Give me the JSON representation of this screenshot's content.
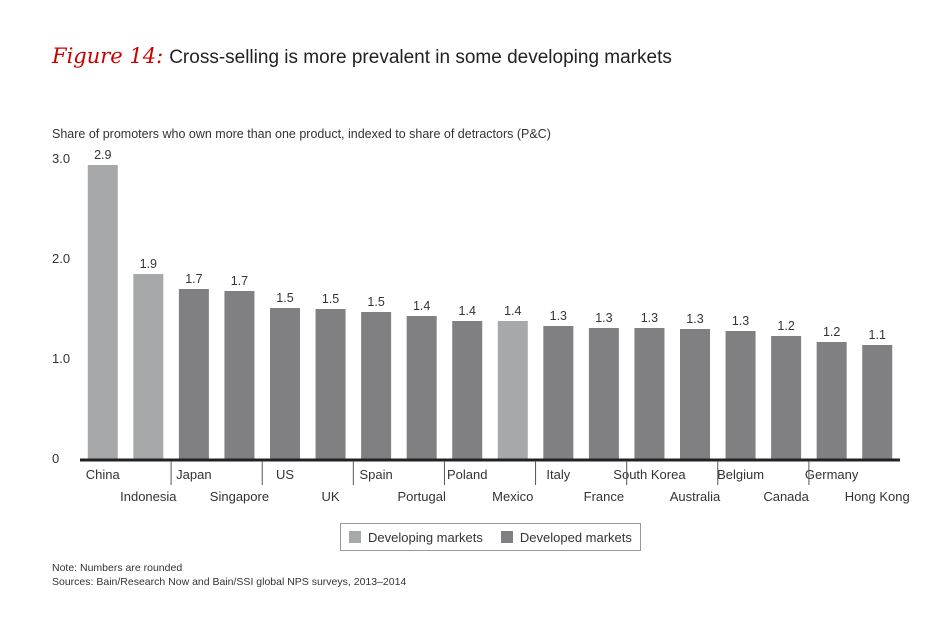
{
  "figure": {
    "label": "Figure 14:",
    "title": "Cross-selling is more prevalent in some developing markets"
  },
  "chart_data": {
    "type": "bar",
    "title": "Cross-selling is more prevalent in some developing markets",
    "ylabel": "Share of promoters who own more than one product, indexed to share of detractors (P&C)",
    "xlabel": "",
    "ylim": [
      0,
      3.0
    ],
    "yticks": [
      {
        "value": 0,
        "label": "0"
      },
      {
        "value": 1.0,
        "label": "1.0"
      },
      {
        "value": 2.0,
        "label": "2.0"
      },
      {
        "value": 3.0,
        "label": "3.0"
      }
    ],
    "categories": [
      "China",
      "Indonesia",
      "Japan",
      "Singapore",
      "US",
      "UK",
      "Spain",
      "Portugal",
      "Poland",
      "Mexico",
      "Italy",
      "France",
      "South Korea",
      "Australia",
      "Belgium",
      "Canada",
      "Germany",
      "Hong Kong"
    ],
    "values": [
      2.94,
      1.85,
      1.7,
      1.68,
      1.51,
      1.5,
      1.47,
      1.43,
      1.38,
      1.38,
      1.33,
      1.31,
      1.31,
      1.3,
      1.28,
      1.23,
      1.17,
      1.14
    ],
    "value_labels": [
      "2.9",
      "1.9",
      "1.7",
      "1.7",
      "1.5",
      "1.5",
      "1.5",
      "1.4",
      "1.4",
      "1.4",
      "1.3",
      "1.3",
      "1.3",
      "1.3",
      "1.3",
      "1.2",
      "1.2",
      "1.1"
    ],
    "groups": [
      "Developing markets",
      "Developing markets",
      "Developed markets",
      "Developed markets",
      "Developed markets",
      "Developed markets",
      "Developed markets",
      "Developed markets",
      "Developed markets",
      "Developing markets",
      "Developed markets",
      "Developed markets",
      "Developed markets",
      "Developed markets",
      "Developed markets",
      "Developed markets",
      "Developed markets",
      "Developed markets"
    ],
    "legend": [
      {
        "name": "Developing markets",
        "color": "#a7a8aa"
      },
      {
        "name": "Developed markets",
        "color": "#808083"
      }
    ],
    "legend_position": "bottom"
  },
  "notes": {
    "note": "Note: Numbers are rounded",
    "sources": "Sources: Bain/Research Now and Bain/SSI global NPS surveys, 2013–2014"
  }
}
